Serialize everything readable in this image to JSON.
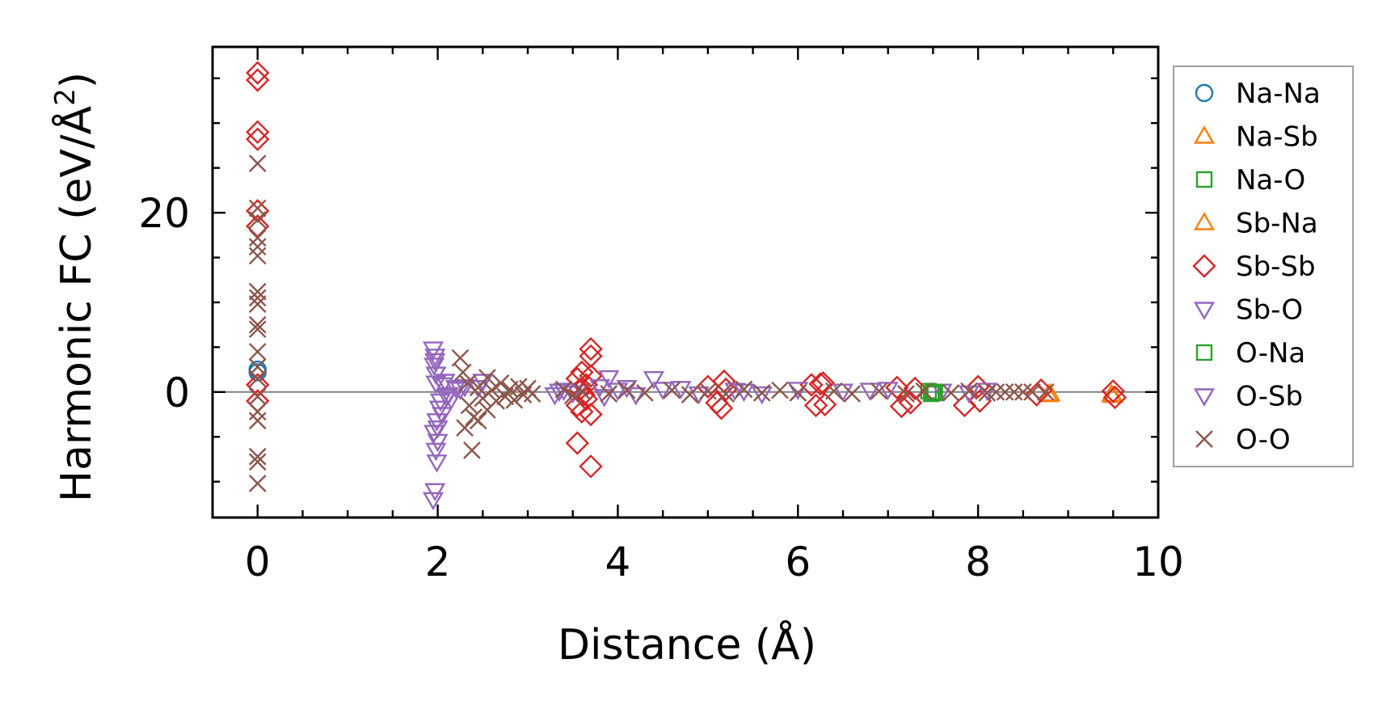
{
  "chart_data": {
    "type": "scatter",
    "xlabel": "Distance (Å)",
    "ylabel_main": "Harmonic FC (eV/Å",
    "ylabel_sup": "2",
    "ylabel_close": ")",
    "xlim": [
      -0.5,
      10
    ],
    "ylim": [
      -14,
      38.5
    ],
    "x_ticks": [
      0,
      2,
      4,
      6,
      8,
      10
    ],
    "x_tick_labels": [
      "0",
      "2",
      "4",
      "6",
      "8",
      "10"
    ],
    "y_ticks": [
      0,
      20
    ],
    "y_tick_labels": [
      "0",
      "20"
    ],
    "legend_position": "right",
    "reference_line_y": 0,
    "series": [
      {
        "name": "Na-Na",
        "marker": "circle",
        "color": "#1f77b4",
        "points": [
          [
            0,
            2.5
          ],
          [
            0,
            2.2
          ]
        ]
      },
      {
        "name": "Na-Sb",
        "marker": "triangle-up",
        "color": "#ff7f0e",
        "points": [
          [
            8.78,
            -0.3
          ],
          [
            9.5,
            -0.4
          ]
        ]
      },
      {
        "name": "Na-O",
        "marker": "square",
        "color": "#2ca02c",
        "points": [
          [
            7.5,
            -0.1
          ],
          [
            7.45,
            0.1
          ]
        ]
      },
      {
        "name": "Sb-Na",
        "marker": "triangle-up",
        "color": "#ff7f0e",
        "points": [
          [
            8.8,
            -0.2
          ],
          [
            9.48,
            -0.3
          ]
        ]
      },
      {
        "name": "Sb-Sb",
        "marker": "diamond",
        "color": "#d62728",
        "points": [
          [
            0,
            35.6
          ],
          [
            0,
            34.8
          ],
          [
            0,
            29
          ],
          [
            0,
            28.2
          ],
          [
            0,
            20.2
          ],
          [
            0,
            18.5
          ],
          [
            0,
            0.8
          ],
          [
            0,
            -1
          ],
          [
            3.55,
            -5.7
          ],
          [
            3.55,
            1.5
          ],
          [
            3.55,
            -1.5
          ],
          [
            3.6,
            2.2
          ],
          [
            3.6,
            -2.2
          ],
          [
            3.65,
            0.8
          ],
          [
            3.65,
            -0.8
          ],
          [
            3.7,
            4.8
          ],
          [
            3.7,
            4.0
          ],
          [
            3.7,
            -8.3
          ],
          [
            3.7,
            1.8
          ],
          [
            3.7,
            -2.5
          ],
          [
            3.58,
            0.3
          ],
          [
            3.62,
            -0.3
          ],
          [
            5.0,
            0.6
          ],
          [
            5.1,
            -1.2
          ],
          [
            5.18,
            1.2
          ],
          [
            5.15,
            -1.8
          ],
          [
            5.2,
            0.3
          ],
          [
            6.15,
            0.8
          ],
          [
            6.2,
            -1.5
          ],
          [
            6.25,
            0.9
          ],
          [
            6.3,
            -1.4
          ],
          [
            6.28,
            1.0
          ],
          [
            7.1,
            0.5
          ],
          [
            7.15,
            -1.6
          ],
          [
            7.25,
            -1.2
          ],
          [
            7.3,
            0.4
          ],
          [
            7.85,
            -1.5
          ],
          [
            8.0,
            0.6
          ],
          [
            8.02,
            -1.0
          ],
          [
            8.65,
            -0.3
          ],
          [
            8.7,
            0.2
          ],
          [
            9.5,
            0.1
          ],
          [
            9.52,
            -0.6
          ]
        ]
      },
      {
        "name": "Sb-O",
        "marker": "triangle-down",
        "color": "#9467bd",
        "points": [
          [
            1.95,
            4.8
          ],
          [
            1.97,
            4.0
          ],
          [
            1.96,
            3.0
          ],
          [
            1.98,
            2.0
          ],
          [
            1.95,
            -12.0
          ],
          [
            1.97,
            -11.0
          ],
          [
            1.99,
            -7.8
          ],
          [
            1.98,
            -6.5
          ],
          [
            2.0,
            -5.5
          ],
          [
            1.96,
            -4.5
          ],
          [
            1.99,
            -3.2
          ],
          [
            2.02,
            -1.8
          ],
          [
            2.05,
            -2.5
          ],
          [
            2.08,
            1.2
          ],
          [
            2.1,
            -0.5
          ],
          [
            2.15,
            -0.8
          ],
          [
            2.2,
            0.5
          ],
          [
            2.25,
            0.3
          ],
          [
            2.5,
            1.2
          ],
          [
            2.45,
            0.5
          ],
          [
            3.3,
            -0.3
          ],
          [
            3.4,
            0.2
          ],
          [
            3.5,
            -0.1
          ],
          [
            3.8,
            0.6
          ],
          [
            3.85,
            -0.5
          ],
          [
            3.9,
            1.6
          ],
          [
            4.0,
            0.2
          ],
          [
            4.2,
            -0.3
          ],
          [
            4.4,
            1.5
          ],
          [
            4.5,
            0.3
          ],
          [
            4.7,
            0.4
          ],
          [
            4.9,
            -0.2
          ],
          [
            5.3,
            0.2
          ],
          [
            5.6,
            -0.2
          ],
          [
            6.0,
            0.3
          ],
          [
            6.5,
            0.1
          ],
          [
            7.0,
            0.3
          ],
          [
            7.6,
            0.1
          ],
          [
            7.9,
            -0.1
          ],
          [
            8.1,
            0.2
          ]
        ]
      },
      {
        "name": "O-Na",
        "marker": "square",
        "color": "#2ca02c",
        "points": [
          [
            7.52,
            0.0
          ],
          [
            7.48,
            -0.2
          ]
        ]
      },
      {
        "name": "O-Sb",
        "marker": "triangle-down",
        "color": "#9467bd",
        "points": [
          [
            1.97,
            3.5
          ],
          [
            1.98,
            1.0
          ],
          [
            2.0,
            -4.0
          ],
          [
            2.03,
            -1.0
          ],
          [
            2.06,
            0.8
          ],
          [
            2.12,
            -0.3
          ],
          [
            2.3,
            0.6
          ],
          [
            3.35,
            0.1
          ],
          [
            4.1,
            0.5
          ],
          [
            5.4,
            0.1
          ],
          [
            6.8,
            0.2
          ]
        ]
      },
      {
        "name": "O-O",
        "marker": "x",
        "color": "#8c564b",
        "points": [
          [
            0,
            25.5
          ],
          [
            0,
            20.5
          ],
          [
            0,
            19.2
          ],
          [
            0,
            17.2
          ],
          [
            0,
            16.2
          ],
          [
            0,
            15.2
          ],
          [
            0,
            11.2
          ],
          [
            0,
            10.5
          ],
          [
            0,
            9.8
          ],
          [
            0,
            7.5
          ],
          [
            0,
            7.0
          ],
          [
            0,
            4.5
          ],
          [
            0,
            2.8
          ],
          [
            0,
            1.5
          ],
          [
            0,
            -0.5
          ],
          [
            0,
            -2.2
          ],
          [
            0,
            -3.2
          ],
          [
            0,
            -7.2
          ],
          [
            0,
            -7.8
          ],
          [
            0,
            -10.2
          ],
          [
            2.25,
            3.8
          ],
          [
            2.28,
            2.2
          ],
          [
            2.3,
            -4.0
          ],
          [
            2.33,
            1.0
          ],
          [
            2.35,
            -1.5
          ],
          [
            2.38,
            -6.5
          ],
          [
            2.4,
            -2.8
          ],
          [
            2.45,
            0.5
          ],
          [
            2.5,
            -0.7
          ],
          [
            2.55,
            1.6
          ],
          [
            2.6,
            0.2
          ],
          [
            2.65,
            -1.0
          ],
          [
            2.7,
            1.0
          ],
          [
            2.75,
            -0.5
          ],
          [
            2.8,
            0.3
          ],
          [
            2.85,
            -0.9
          ],
          [
            2.9,
            0.6
          ],
          [
            2.95,
            -0.3
          ],
          [
            3.0,
            0.4
          ],
          [
            3.05,
            -0.2
          ],
          [
            2.45,
            -3.2
          ],
          [
            2.55,
            -2.0
          ],
          [
            3.4,
            0.3
          ],
          [
            3.5,
            -0.4
          ],
          [
            3.6,
            0.1
          ],
          [
            3.9,
            -0.2
          ],
          [
            4.1,
            0.2
          ],
          [
            4.3,
            -0.1
          ],
          [
            4.6,
            0.2
          ],
          [
            4.8,
            -0.3
          ],
          [
            5.0,
            0.1
          ],
          [
            5.2,
            -0.2
          ],
          [
            5.4,
            0.3
          ],
          [
            5.6,
            -0.1
          ],
          [
            5.8,
            0.2
          ],
          [
            6.0,
            -0.1
          ],
          [
            6.4,
            0.1
          ],
          [
            6.6,
            -0.2
          ],
          [
            6.9,
            0.1
          ],
          [
            7.2,
            -0.2
          ],
          [
            7.4,
            0.1
          ],
          [
            7.7,
            -0.1
          ],
          [
            7.9,
            0.1
          ],
          [
            8.1,
            -0.1
          ],
          [
            8.2,
            0.0
          ],
          [
            8.3,
            0.0
          ],
          [
            8.4,
            0.0
          ],
          [
            8.5,
            0.0
          ],
          [
            8.6,
            0.0
          ],
          [
            8.75,
            0.0
          ]
        ]
      }
    ],
    "legend": [
      {
        "label": "Na-Na",
        "marker": "circle",
        "color": "#1f77b4"
      },
      {
        "label": "Na-Sb",
        "marker": "triangle-up",
        "color": "#ff7f0e"
      },
      {
        "label": "Na-O",
        "marker": "square",
        "color": "#2ca02c"
      },
      {
        "label": "Sb-Na",
        "marker": "triangle-up",
        "color": "#ff7f0e"
      },
      {
        "label": "Sb-Sb",
        "marker": "diamond",
        "color": "#d62728"
      },
      {
        "label": "Sb-O",
        "marker": "triangle-down",
        "color": "#9467bd"
      },
      {
        "label": "O-Na",
        "marker": "square",
        "color": "#2ca02c"
      },
      {
        "label": "O-Sb",
        "marker": "triangle-down",
        "color": "#9467bd"
      },
      {
        "label": "O-O",
        "marker": "x",
        "color": "#8c564b"
      }
    ]
  }
}
